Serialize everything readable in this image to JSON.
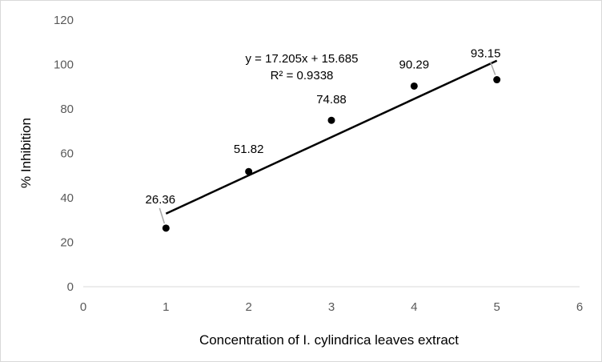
{
  "chart_data": {
    "type": "scatter",
    "title": "",
    "xlabel": "Concentration of I. cylindrica leaves extract",
    "ylabel": "%  Inhibition",
    "xlim": [
      0,
      6
    ],
    "ylim": [
      0,
      120
    ],
    "xticks": [
      0,
      1,
      2,
      3,
      4,
      5,
      6
    ],
    "yticks": [
      0,
      20,
      40,
      60,
      80,
      100,
      120
    ],
    "grid": false,
    "legend": "none",
    "series": [
      {
        "x": [
          1,
          2,
          3,
          4,
          5
        ],
        "y": [
          26.36,
          51.82,
          74.88,
          90.29,
          93.15
        ],
        "labels": [
          "26.36",
          "51.82",
          "74.88",
          "90.29",
          "93.15"
        ],
        "color": "#000000"
      }
    ],
    "trendline": {
      "type": "linear",
      "slope": 17.205,
      "intercept": 15.685,
      "x_range": [
        1,
        5
      ],
      "equation": "y = 17.205x + 15.685",
      "r_squared": "R² = 0.9338",
      "color": "#000000"
    }
  }
}
